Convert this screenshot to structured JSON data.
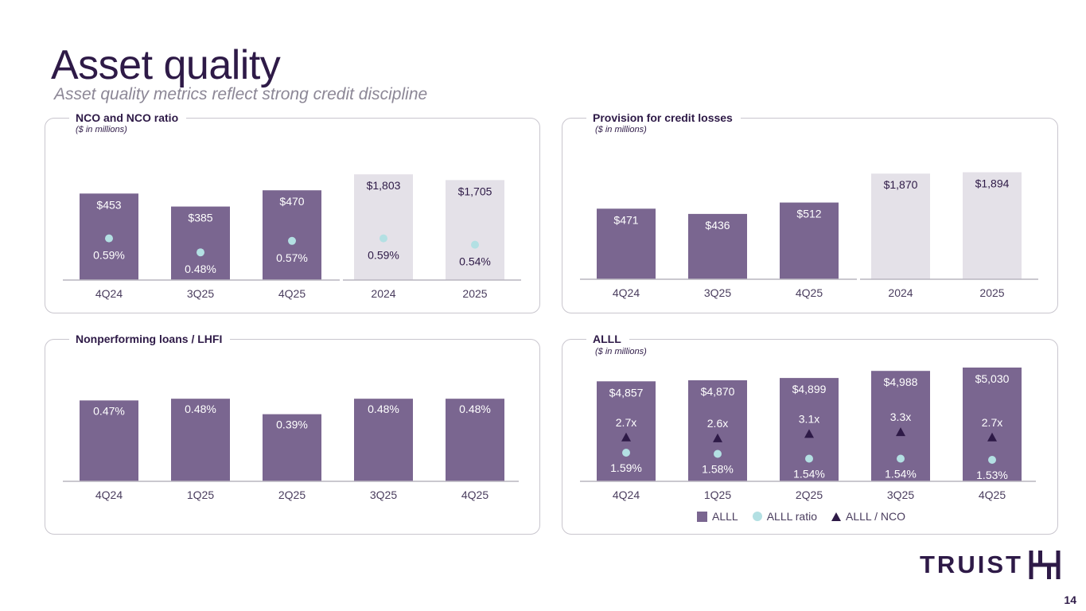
{
  "page": {
    "title": "Asset quality",
    "subtitle": "Asset quality metrics reflect strong credit discipline",
    "page_number": "14",
    "logo_text": "TRUIST"
  },
  "colors": {
    "bar_quarter": "#7a6690",
    "bar_annual": "#e4e1e8",
    "dot": "#b3e0e3",
    "triangle": "#2e1a47",
    "text_dark": "#2e1a47",
    "text_light": "#ffffff"
  },
  "panels": {
    "nco": {
      "title": "NCO and NCO ratio",
      "units": "($ in millions)"
    },
    "provision": {
      "title": "Provision for credit losses",
      "units": "($ in millions)"
    },
    "npl": {
      "title": "Nonperforming loans / LHFI"
    },
    "alll": {
      "title": "ALLL",
      "units": "($ in millions)"
    }
  },
  "legend": {
    "alll": "ALLL",
    "alll_ratio": "ALLL ratio",
    "alll_nco": "ALLL / NCO"
  },
  "chart_data": [
    {
      "id": "nco",
      "type": "bar",
      "title": "NCO and NCO ratio",
      "categories": [
        "4Q24",
        "3Q25",
        "4Q25",
        "2024",
        "2025"
      ],
      "annual": [
        false,
        false,
        false,
        true,
        true
      ],
      "series": [
        {
          "name": "NCO",
          "values": [
            453,
            385,
            470,
            1803,
            1705
          ],
          "labels": [
            "$453",
            "$385",
            "$470",
            "$1,803",
            "$1,705"
          ]
        },
        {
          "name": "NCO ratio",
          "values": [
            0.59,
            0.48,
            0.57,
            0.59,
            0.54
          ],
          "labels": [
            "0.59%",
            "0.48%",
            "0.57%",
            "0.59%",
            "0.54%"
          ]
        }
      ]
    },
    {
      "id": "provision",
      "type": "bar",
      "title": "Provision for credit losses",
      "categories": [
        "4Q24",
        "3Q25",
        "4Q25",
        "2024",
        "2025"
      ],
      "annual": [
        false,
        false,
        false,
        true,
        true
      ],
      "series": [
        {
          "name": "Provision",
          "values": [
            471,
            436,
            512,
            1870,
            1894
          ],
          "labels": [
            "$471",
            "$436",
            "$512",
            "$1,870",
            "$1,894"
          ]
        }
      ]
    },
    {
      "id": "npl",
      "type": "bar",
      "title": "Nonperforming loans / LHFI",
      "categories": [
        "4Q24",
        "1Q25",
        "2Q25",
        "3Q25",
        "4Q25"
      ],
      "series": [
        {
          "name": "NPL / LHFI",
          "values": [
            0.47,
            0.48,
            0.39,
            0.48,
            0.48
          ],
          "labels": [
            "0.47%",
            "0.48%",
            "0.39%",
            "0.48%",
            "0.48%"
          ]
        }
      ]
    },
    {
      "id": "alll",
      "type": "bar",
      "title": "ALLL",
      "categories": [
        "4Q24",
        "1Q25",
        "2Q25",
        "3Q25",
        "4Q25"
      ],
      "series": [
        {
          "name": "ALLL",
          "values": [
            4857,
            4870,
            4899,
            4988,
            5030
          ],
          "labels": [
            "$4,857",
            "$4,870",
            "$4,899",
            "$4,988",
            "$5,030"
          ]
        },
        {
          "name": "ALLL / NCO",
          "values": [
            2.7,
            2.6,
            3.1,
            3.3,
            2.7
          ],
          "labels": [
            "2.7x",
            "2.6x",
            "3.1x",
            "3.3x",
            "2.7x"
          ]
        },
        {
          "name": "ALLL ratio",
          "values": [
            1.59,
            1.58,
            1.54,
            1.54,
            1.53
          ],
          "labels": [
            "1.59%",
            "1.58%",
            "1.54%",
            "1.54%",
            "1.53%"
          ]
        }
      ]
    }
  ]
}
